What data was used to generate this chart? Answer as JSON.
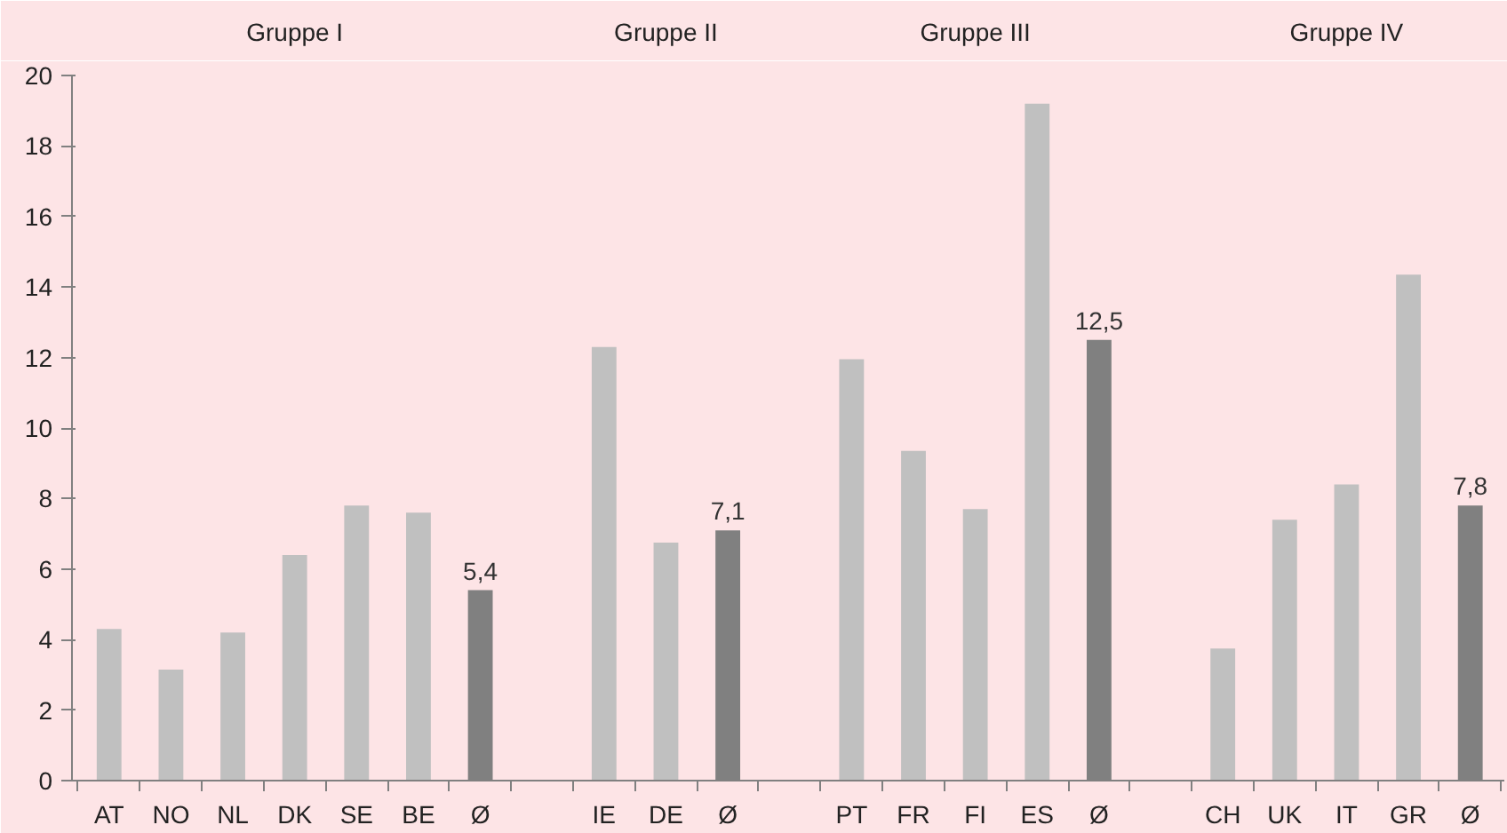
{
  "chart_data": {
    "type": "bar",
    "categories": [
      "AT",
      "NO",
      "NL",
      "DK",
      "SE",
      "BE",
      "Ø",
      null,
      "IE",
      "DE",
      "Ø",
      null,
      "PT",
      "FR",
      "FI",
      "ES",
      "Ø",
      null,
      "CH",
      "UK",
      "IT",
      "GR",
      "Ø"
    ],
    "values": [
      4.3,
      3.15,
      4.2,
      6.4,
      7.8,
      7.6,
      5.4,
      null,
      12.3,
      6.75,
      7.1,
      null,
      11.95,
      9.35,
      7.7,
      19.2,
      12.5,
      null,
      3.75,
      7.4,
      8.4,
      14.35,
      7.8
    ],
    "colors": [
      "#c0c0c0",
      "#c0c0c0",
      "#c0c0c0",
      "#c0c0c0",
      "#c0c0c0",
      "#c0c0c0",
      "#808080",
      null,
      "#c0c0c0",
      "#c0c0c0",
      "#808080",
      null,
      "#c0c0c0",
      "#c0c0c0",
      "#c0c0c0",
      "#c0c0c0",
      "#808080",
      null,
      "#c0c0c0",
      "#c0c0c0",
      "#c0c0c0",
      "#c0c0c0",
      "#808080"
    ],
    "value_labels": [
      null,
      null,
      null,
      null,
      null,
      null,
      "5,4",
      null,
      null,
      null,
      "7,1",
      null,
      null,
      null,
      null,
      null,
      "12,5",
      null,
      null,
      null,
      null,
      null,
      "7,8"
    ],
    "annotations": [
      "Gruppe I",
      "Gruppe II",
      "Gruppe III",
      "Gruppe IV"
    ],
    "ylim": [
      0,
      20
    ],
    "yticks": [
      0,
      2,
      4,
      6,
      8,
      10,
      12,
      14,
      16,
      18,
      20
    ],
    "grid": false
  }
}
